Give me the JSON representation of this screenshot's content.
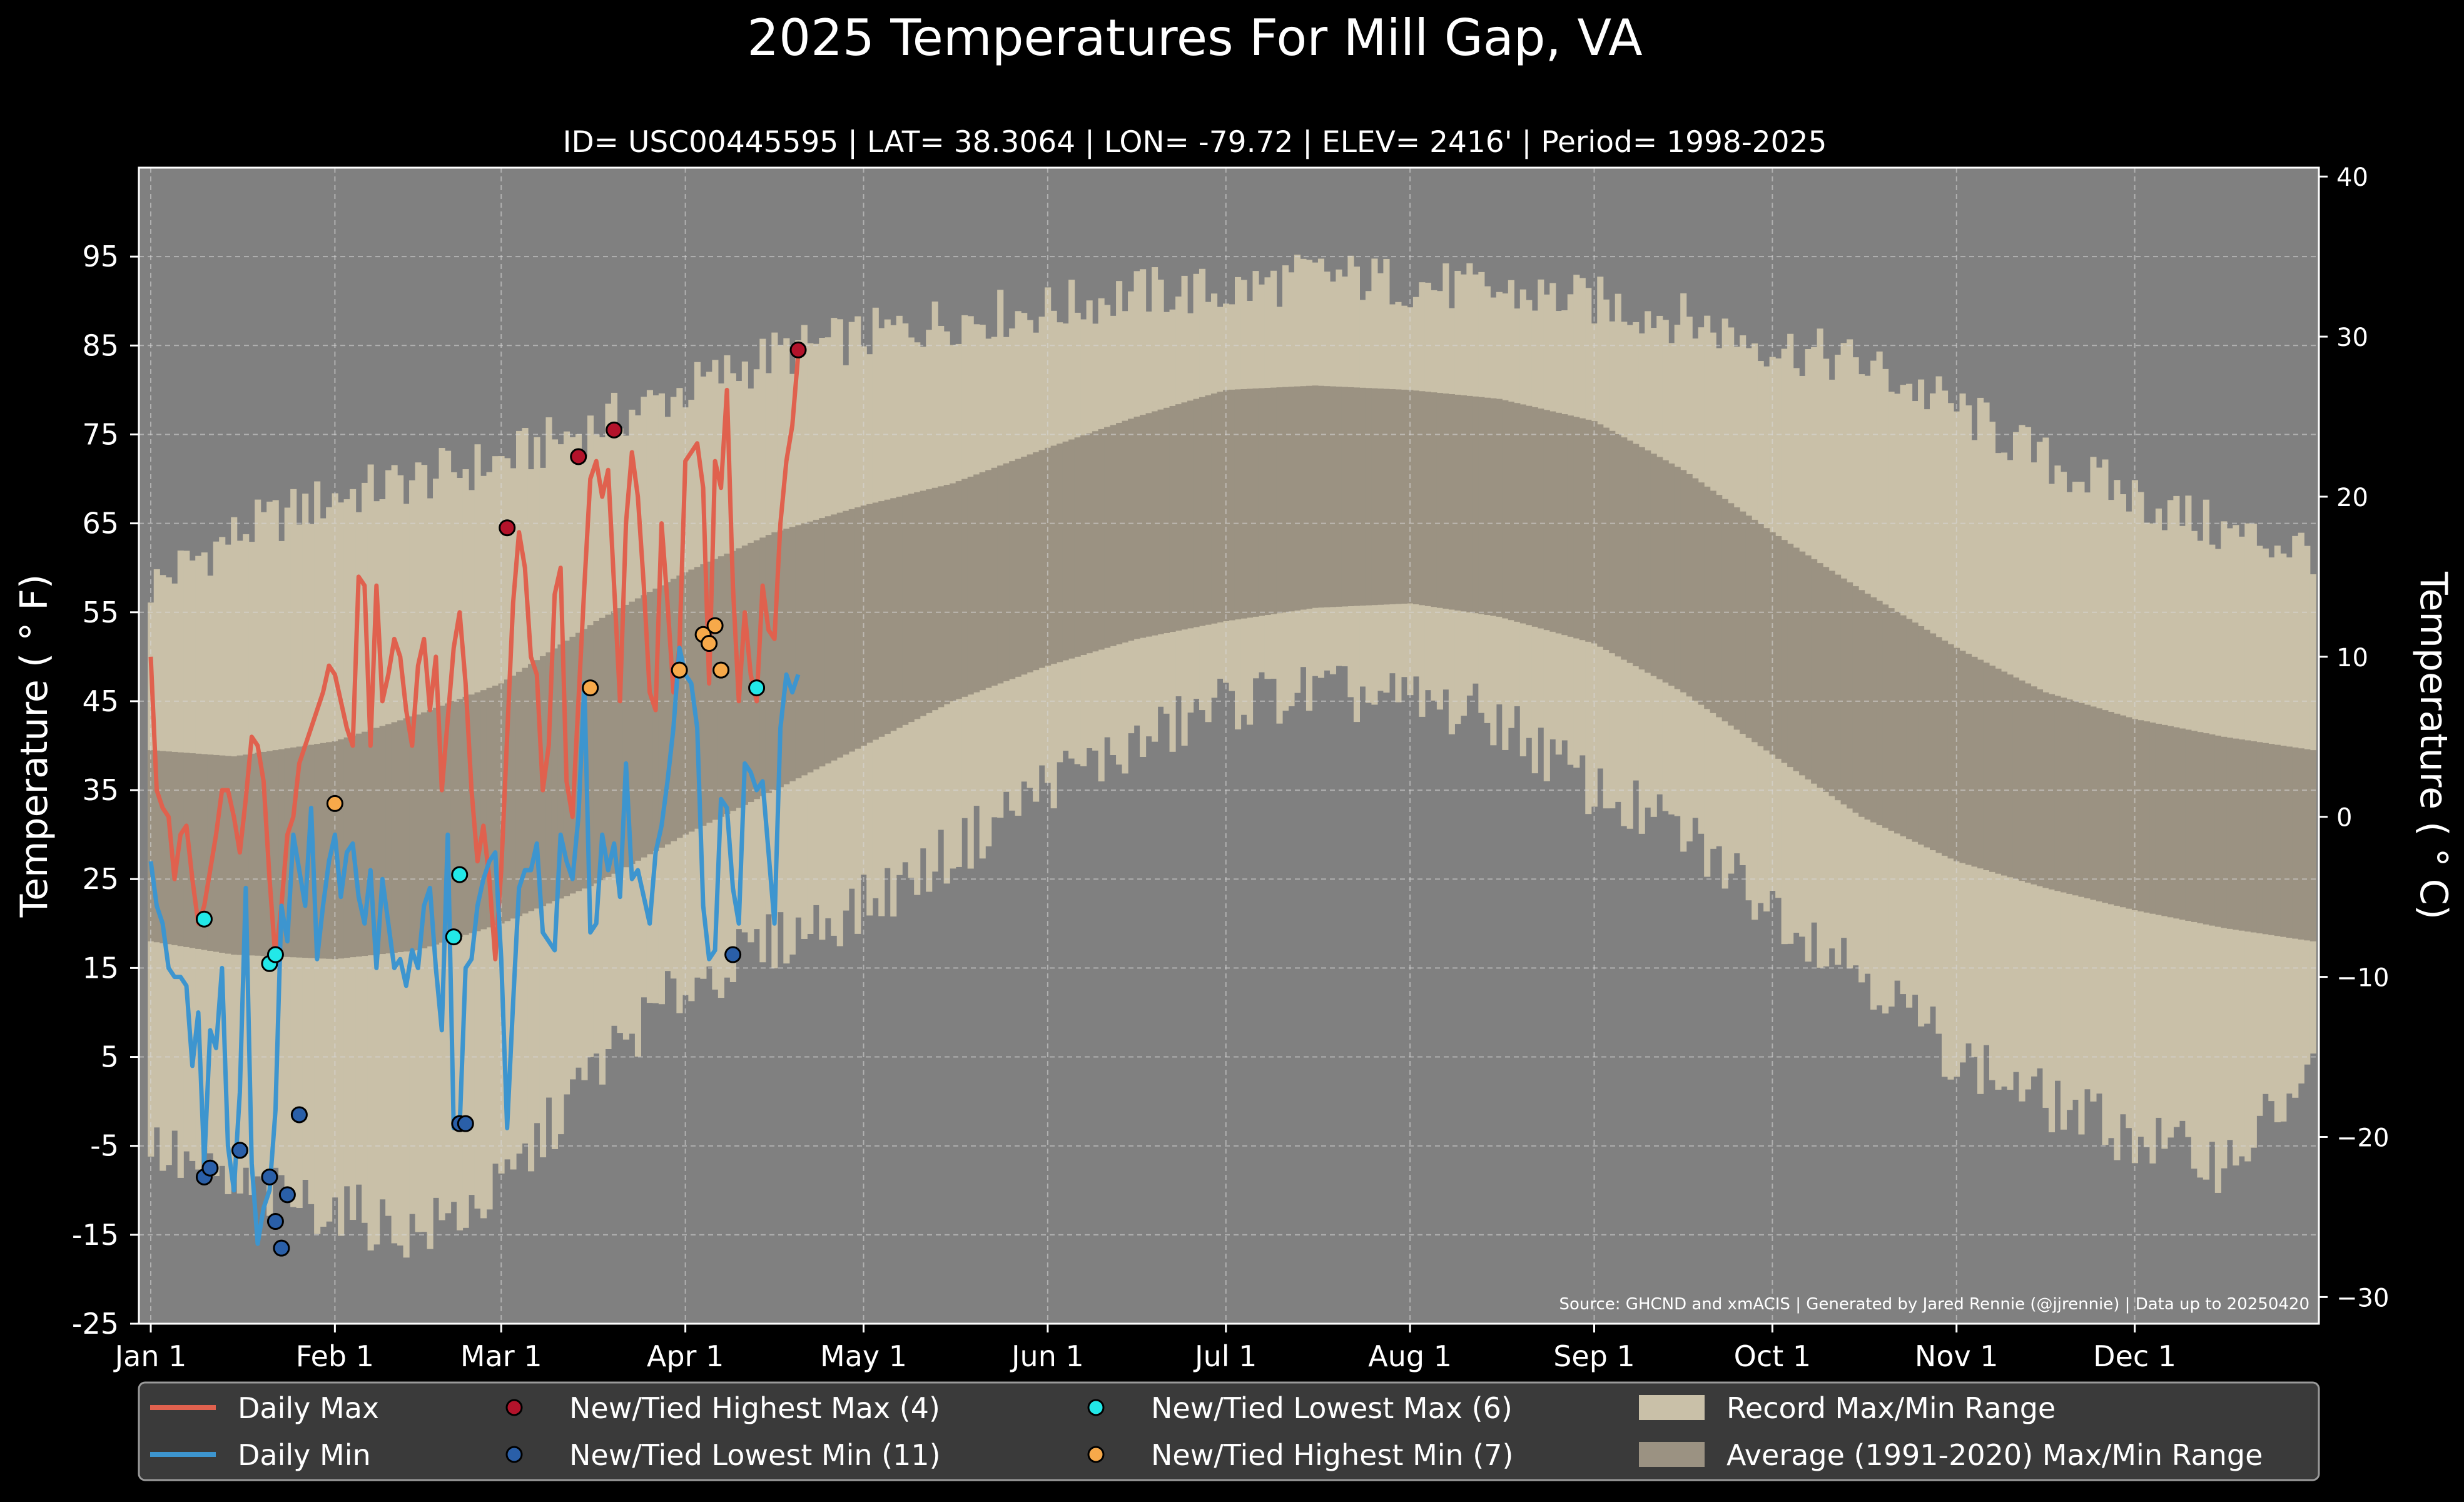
{
  "chart_data": {
    "type": "line",
    "title": "2025 Temperatures For Mill Gap, VA",
    "subtitle": "ID= USC00445595 | LAT= 38.3064 | LON= -79.72 | ELEV= 2416' | Period= 1998-2025",
    "ylabel": "Temperature ( ° F)",
    "ylabel_right": "Temperature ( ° C)",
    "ylim": [
      -25,
      105
    ],
    "ylim_right_c": [
      -31.667,
      40.556
    ],
    "xlim_day": [
      -2,
      365
    ],
    "yticks": [
      "95",
      "85",
      "75",
      "65",
      "55",
      "45",
      "35",
      "25",
      "15",
      "5",
      "-5",
      "-15",
      "-25"
    ],
    "yticks_right": [
      "40",
      "30",
      "20",
      "10",
      "0",
      "−10",
      "−20",
      "−30"
    ],
    "x_tick_labels": [
      "Jan 1",
      "Feb 1",
      "Mar 1",
      "Apr 1",
      "May 1",
      "Jun 1",
      "Jul 1",
      "Aug 1",
      "Sep 1",
      "Oct 1",
      "Nov 1",
      "Dec 1"
    ],
    "grid": true,
    "legend_placement": "bottom",
    "source_note": "Source: GHCND and xmACIS | Generated by Jared Rennie (@jjrennie) | Data up to 20250420",
    "colors": {
      "background": "#000000",
      "plot_bg": "#808080",
      "record_band": "#c9c0a8",
      "normal_band": "#9b9282",
      "daily_max": "#e0614e",
      "daily_min": "#3d95cf",
      "record_high_max": "#b3132b",
      "record_low_min": "#2a5fa8",
      "record_low_max": "#22e8e8",
      "record_high_min": "#f7a94a",
      "legend_bg": "#3a3a3a"
    },
    "legend": [
      {
        "label": "Daily Max",
        "kind": "line",
        "color_key": "daily_max"
      },
      {
        "label": "New/Tied Highest Max (4)",
        "kind": "dot",
        "color_key": "record_high_max"
      },
      {
        "label": "New/Tied Lowest Max (6)",
        "kind": "dot",
        "color_key": "record_low_max"
      },
      {
        "label": "Record Max/Min Range",
        "kind": "box",
        "color_key": "record_band"
      },
      {
        "label": "Daily Min",
        "kind": "line",
        "color_key": "daily_min"
      },
      {
        "label": "New/Tied Lowest Min (11)",
        "kind": "dot",
        "color_key": "record_low_min"
      },
      {
        "label": "New/Tied Highest Min (7)",
        "kind": "dot",
        "color_key": "record_high_min"
      },
      {
        "label": "Average (1991-2020) Max/Min Range",
        "kind": "box",
        "color_key": "normal_band"
      }
    ],
    "record_max_keypoints": [
      [
        0,
        58
      ],
      [
        15,
        64
      ],
      [
        31,
        68
      ],
      [
        45,
        70
      ],
      [
        59,
        72
      ],
      [
        75,
        76
      ],
      [
        90,
        80
      ],
      [
        105,
        84
      ],
      [
        120,
        86
      ],
      [
        135,
        88
      ],
      [
        151,
        89
      ],
      [
        166,
        91
      ],
      [
        181,
        91
      ],
      [
        196,
        93
      ],
      [
        212,
        92
      ],
      [
        227,
        91
      ],
      [
        243,
        90
      ],
      [
        258,
        88
      ],
      [
        273,
        85
      ],
      [
        288,
        83
      ],
      [
        304,
        78
      ],
      [
        319,
        72
      ],
      [
        334,
        68
      ],
      [
        349,
        64
      ],
      [
        364,
        62
      ]
    ],
    "record_min_keypoints": [
      [
        0,
        -5
      ],
      [
        15,
        -10
      ],
      [
        31,
        -12
      ],
      [
        45,
        -15
      ],
      [
        59,
        -10
      ],
      [
        75,
        4
      ],
      [
        90,
        13
      ],
      [
        105,
        18
      ],
      [
        120,
        22
      ],
      [
        135,
        28
      ],
      [
        151,
        36
      ],
      [
        166,
        40
      ],
      [
        181,
        45
      ],
      [
        196,
        46
      ],
      [
        212,
        45
      ],
      [
        227,
        43
      ],
      [
        243,
        35
      ],
      [
        258,
        30
      ],
      [
        273,
        22
      ],
      [
        288,
        15
      ],
      [
        304,
        5
      ],
      [
        319,
        0
      ],
      [
        334,
        -4
      ],
      [
        349,
        -7
      ],
      [
        364,
        3
      ]
    ],
    "normal_max_keypoints": [
      [
        0,
        39.5
      ],
      [
        14,
        38.8
      ],
      [
        31,
        40.5
      ],
      [
        45,
        43.5
      ],
      [
        59,
        47
      ],
      [
        75,
        54
      ],
      [
        90,
        59.5
      ],
      [
        105,
        64
      ],
      [
        120,
        67
      ],
      [
        135,
        69.5
      ],
      [
        151,
        73.5
      ],
      [
        166,
        77
      ],
      [
        181,
        80
      ],
      [
        196,
        80.5
      ],
      [
        212,
        80
      ],
      [
        227,
        79
      ],
      [
        243,
        76.5
      ],
      [
        258,
        71
      ],
      [
        273,
        64
      ],
      [
        288,
        57.5
      ],
      [
        304,
        51
      ],
      [
        319,
        46
      ],
      [
        334,
        43
      ],
      [
        349,
        41
      ],
      [
        364,
        39.5
      ]
    ],
    "normal_min_keypoints": [
      [
        0,
        18
      ],
      [
        14,
        16.5
      ],
      [
        31,
        16
      ],
      [
        45,
        17
      ],
      [
        59,
        20
      ],
      [
        75,
        24.5
      ],
      [
        90,
        30
      ],
      [
        105,
        35
      ],
      [
        120,
        40
      ],
      [
        135,
        45
      ],
      [
        151,
        49
      ],
      [
        166,
        52
      ],
      [
        181,
        54
      ],
      [
        196,
        55.5
      ],
      [
        212,
        56
      ],
      [
        227,
        54.5
      ],
      [
        243,
        51.5
      ],
      [
        258,
        46
      ],
      [
        273,
        39
      ],
      [
        288,
        32
      ],
      [
        304,
        27
      ],
      [
        319,
        24
      ],
      [
        334,
        21.5
      ],
      [
        349,
        19.5
      ],
      [
        364,
        18
      ]
    ],
    "series": [
      {
        "name": "Daily Max",
        "x": [
          0,
          1,
          2,
          3,
          4,
          5,
          6,
          7,
          8,
          9,
          10,
          11,
          12,
          13,
          14,
          15,
          16,
          17,
          18,
          19,
          20,
          21,
          22,
          23,
          24,
          25,
          26,
          27,
          28,
          29,
          30,
          31,
          32,
          33,
          34,
          35,
          36,
          37,
          38,
          39,
          40,
          41,
          42,
          43,
          44,
          45,
          46,
          47,
          48,
          49,
          50,
          51,
          52,
          53,
          54,
          55,
          56,
          57,
          58,
          59,
          60,
          61,
          62,
          63,
          64,
          65,
          66,
          67,
          68,
          69,
          70,
          71,
          72,
          73,
          74,
          75,
          76,
          77,
          78,
          79,
          80,
          81,
          82,
          83,
          84,
          85,
          86,
          87,
          88,
          89,
          90,
          91,
          92,
          93,
          94,
          95,
          96,
          97,
          98,
          99,
          100,
          101,
          102,
          103,
          104,
          105,
          106,
          107,
          108,
          109
        ],
        "values": [
          50,
          35,
          33,
          32,
          25,
          30,
          31,
          25,
          20,
          22,
          26,
          30,
          35,
          35,
          32,
          28,
          34,
          41,
          40,
          36,
          25,
          16,
          22,
          30,
          32,
          38,
          40,
          42,
          44,
          46,
          49,
          48,
          45,
          42,
          40,
          59,
          58,
          40,
          58,
          45,
          48,
          52,
          50,
          44,
          40,
          49,
          52,
          44,
          50,
          35,
          43,
          51,
          55,
          47,
          35,
          27,
          31,
          25,
          16,
          26,
          41,
          56,
          64,
          60,
          50,
          48,
          35,
          40,
          57,
          60,
          36,
          32,
          45,
          58,
          70,
          72,
          68,
          71,
          58,
          45,
          65,
          73,
          68,
          58,
          46,
          44,
          65,
          56,
          46,
          51,
          72,
          73,
          74,
          69,
          47,
          72,
          69,
          80,
          58,
          45,
          55,
          48,
          45,
          58,
          53,
          52,
          65,
          72,
          76,
          84
        ]
      },
      {
        "name": "Daily Min",
        "x": [
          0,
          1,
          2,
          3,
          4,
          5,
          6,
          7,
          8,
          9,
          10,
          11,
          12,
          13,
          14,
          15,
          16,
          17,
          18,
          19,
          20,
          21,
          22,
          23,
          24,
          25,
          26,
          27,
          28,
          29,
          30,
          31,
          32,
          33,
          34,
          35,
          36,
          37,
          38,
          39,
          40,
          41,
          42,
          43,
          44,
          45,
          46,
          47,
          48,
          49,
          50,
          51,
          52,
          53,
          54,
          55,
          56,
          57,
          58,
          59,
          60,
          61,
          62,
          63,
          64,
          65,
          66,
          67,
          68,
          69,
          70,
          71,
          72,
          73,
          74,
          75,
          76,
          77,
          78,
          79,
          80,
          81,
          82,
          83,
          84,
          85,
          86,
          87,
          88,
          89,
          90,
          91,
          92,
          93,
          94,
          95,
          96,
          97,
          98,
          99,
          100,
          101,
          102,
          103,
          104,
          105,
          106,
          107,
          108,
          109
        ],
        "values": [
          27,
          22,
          20,
          15,
          14,
          14,
          13,
          4,
          10,
          -7,
          8,
          6,
          15,
          -5,
          -10,
          1,
          24,
          -7,
          -16,
          -12,
          -10,
          -1,
          22,
          18,
          30,
          26,
          22,
          33,
          16,
          22,
          27,
          30,
          23,
          28,
          29,
          23,
          20,
          26,
          15,
          25,
          20,
          15,
          16,
          13,
          17,
          15,
          22,
          24,
          15,
          8,
          30,
          -3,
          -3,
          15,
          16,
          22,
          25,
          27,
          28,
          16,
          -3,
          11,
          24,
          26,
          26,
          29,
          19,
          18,
          17,
          30,
          27,
          25,
          32,
          47,
          19,
          20,
          30,
          26,
          29,
          23,
          38,
          25,
          26,
          23,
          20,
          28,
          31,
          36,
          42,
          51,
          48,
          47,
          42,
          22,
          16,
          17,
          34,
          33,
          24,
          20,
          38,
          37,
          35,
          36,
          28,
          20,
          42,
          48,
          46,
          48
        ]
      }
    ],
    "record_points": [
      {
        "type": "record_high_max",
        "x": [
          60,
          72,
          78,
          109
        ],
        "values": [
          64.5,
          72.5,
          75.5,
          84.5
        ]
      },
      {
        "type": "record_low_min",
        "x": [
          9,
          10,
          15,
          20,
          21,
          22,
          23,
          25,
          52,
          53,
          98
        ],
        "values": [
          -8.5,
          -7.5,
          -5.5,
          -8.5,
          -13.5,
          -16.5,
          -10.5,
          -1.5,
          -2.5,
          -2.5,
          16.5
        ]
      },
      {
        "type": "record_low_max",
        "x": [
          9,
          20,
          21,
          51,
          52,
          102
        ],
        "values": [
          20.5,
          15.5,
          16.5,
          18.5,
          25.5,
          46.5
        ]
      },
      {
        "type": "record_high_min",
        "x": [
          31,
          74,
          89,
          93,
          94,
          95,
          96
        ],
        "values": [
          33.5,
          46.5,
          48.5,
          52.5,
          51.5,
          53.5,
          48.5
        ]
      }
    ]
  }
}
